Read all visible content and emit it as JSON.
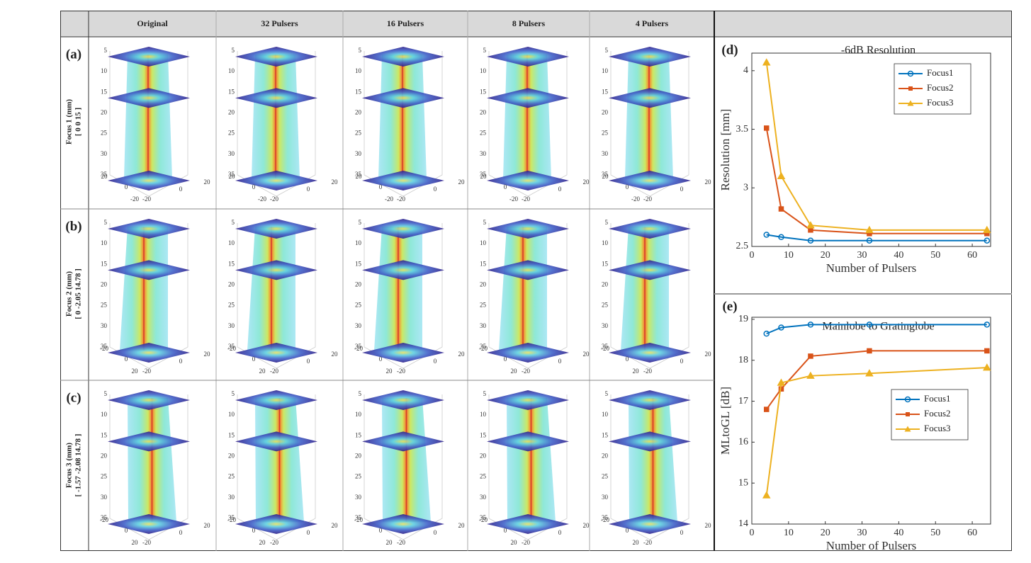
{
  "header": {
    "columns": [
      "Original",
      "32 Pulsers",
      "16 Pulsers",
      "8 Pulsers",
      "4 Pulsers"
    ]
  },
  "rows": [
    {
      "panel": "(a)",
      "label": "Focus 1 (mm)",
      "coords": "[ 0 0 15 ]",
      "z_ticks": [
        5,
        10,
        15,
        20,
        25,
        30,
        35
      ],
      "left_ticks": [
        20,
        0,
        -20
      ],
      "right_ticks": [
        -20,
        0,
        20
      ]
    },
    {
      "panel": "(b)",
      "label": "Focus 2 (mm)",
      "coords": "[ 0 -2.05 14.78 ]",
      "z_ticks": [
        5,
        10,
        15,
        20,
        25,
        30,
        35
      ],
      "left_ticks": [
        -20,
        0,
        20
      ],
      "right_ticks": [
        -20,
        0,
        20
      ]
    },
    {
      "panel": "(c)",
      "label": "Focus 3 (mm)",
      "coords": "[ -1.57 -2.08 14.78 ]",
      "z_ticks": [
        5,
        10,
        15,
        20,
        25,
        30,
        35
      ],
      "left_ticks": [
        -20,
        0,
        20
      ],
      "right_ticks": [
        -20,
        0,
        20
      ]
    }
  ],
  "chart_data": [
    {
      "type": "line",
      "panel": "(d)",
      "title": "-6dB Resolution",
      "xlabel": "Number of Pulsers",
      "ylabel": "Resolution [mm]",
      "x": [
        4,
        8,
        16,
        32,
        64
      ],
      "series": [
        {
          "name": "Focus1",
          "color": "#0072bd",
          "marker": "circle",
          "values": [
            2.6,
            2.58,
            2.55,
            2.55,
            2.55
          ]
        },
        {
          "name": "Focus2",
          "color": "#d95319",
          "marker": "square",
          "values": [
            3.51,
            2.82,
            2.64,
            2.61,
            2.61
          ]
        },
        {
          "name": "Focus3",
          "color": "#edb120",
          "marker": "triangle",
          "values": [
            4.07,
            3.1,
            2.68,
            2.64,
            2.64
          ]
        }
      ],
      "xlim": [
        0,
        65
      ],
      "ylim": [
        2.5,
        4.15
      ],
      "xticks": [
        0,
        10,
        20,
        30,
        40,
        50,
        60
      ],
      "yticks": [
        2.5,
        3,
        3.5,
        4
      ],
      "legend": "upper right"
    },
    {
      "type": "line",
      "panel": "(e)",
      "title": "Mainlobe to Gratinglobe",
      "xlabel": "Number of Pulsers",
      "ylabel": "MLtoGL [dB]",
      "x": [
        4,
        8,
        16,
        32,
        64
      ],
      "series": [
        {
          "name": "Focus1",
          "color": "#0072bd",
          "marker": "circle",
          "values": [
            18.65,
            18.8,
            18.87,
            18.87,
            18.87
          ]
        },
        {
          "name": "Focus2",
          "color": "#d95319",
          "marker": "square",
          "values": [
            16.8,
            17.3,
            18.1,
            18.23,
            18.23
          ]
        },
        {
          "name": "Focus3",
          "color": "#edb120",
          "marker": "triangle",
          "values": [
            14.7,
            17.45,
            17.62,
            17.68,
            17.82
          ]
        }
      ],
      "xlim": [
        0,
        65
      ],
      "ylim": [
        14,
        19.05
      ],
      "xticks": [
        0,
        10,
        20,
        30,
        40,
        50,
        60
      ],
      "yticks": [
        14,
        15,
        16,
        17,
        18,
        19
      ],
      "legend": "right"
    }
  ]
}
